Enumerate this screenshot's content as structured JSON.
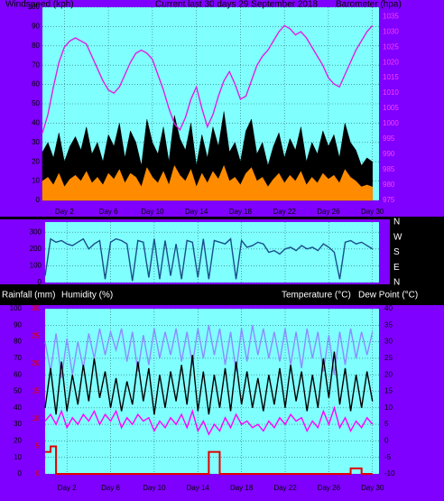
{
  "chart_data": [
    {
      "type": "line",
      "title": "Current last 30 days 29 September 2018",
      "ylabel": "Windspeed (kph)",
      "y2label": "Barometer (hpa)",
      "x": [
        0,
        0.5,
        1,
        1.5,
        2,
        2.5,
        3,
        3.5,
        4,
        4.5,
        5,
        5.5,
        6,
        6.5,
        7,
        7.5,
        8,
        8.5,
        9,
        9.5,
        10,
        10.5,
        11,
        11.5,
        12,
        12.5,
        13,
        13.5,
        14,
        14.5,
        15,
        15.5,
        16,
        16.5,
        17,
        17.5,
        18,
        18.5,
        19,
        19.5,
        20,
        20.5,
        21,
        21.5,
        22,
        22.5,
        23,
        23.5,
        24,
        24.5,
        25,
        25.5,
        26,
        26.5,
        27,
        27.5,
        28,
        28.5,
        29,
        29.5,
        30
      ],
      "xlim": [
        0,
        30.6
      ],
      "xticks": [
        {
          "value": 2,
          "label": "Day 2"
        },
        {
          "value": 6,
          "label": "Day 6"
        },
        {
          "value": 10,
          "label": "Day 10"
        },
        {
          "value": 14,
          "label": "Day 14"
        },
        {
          "value": 18,
          "label": "Day 18"
        },
        {
          "value": 22,
          "label": "Day 22"
        },
        {
          "value": 26,
          "label": "Day 26"
        },
        {
          "value": 30,
          "label": "Day 30"
        }
      ],
      "ylim": [
        0,
        100
      ],
      "yticks": [
        0,
        10,
        20,
        30,
        40,
        50,
        60,
        70,
        80,
        90,
        100
      ],
      "y2lim": [
        975,
        1038
      ],
      "y2ticks": [
        975,
        980,
        985,
        990,
        995,
        1000,
        1005,
        1010,
        1015,
        1020,
        1025,
        1030,
        1035
      ],
      "grid": true,
      "series": [
        {
          "color": "#000000",
          "style": "area",
          "axis": "y",
          "values": [
            25,
            30,
            22,
            35,
            20,
            28,
            33,
            26,
            38,
            24,
            30,
            20,
            34,
            28,
            40,
            22,
            36,
            30,
            18,
            42,
            30,
            24,
            38,
            20,
            44,
            32,
            26,
            40,
            18,
            34,
            22,
            38,
            28,
            46,
            25,
            30,
            20,
            36,
            42,
            24,
            30,
            18,
            28,
            35,
            22,
            32,
            26,
            38,
            20,
            30,
            24,
            36,
            28,
            34,
            22,
            40,
            30,
            26,
            18,
            22,
            20
          ]
        },
        {
          "color": "#ff8c00",
          "style": "area",
          "axis": "y",
          "values": [
            10,
            12,
            8,
            14,
            7,
            11,
            13,
            10,
            15,
            9,
            12,
            8,
            14,
            11,
            16,
            9,
            14,
            12,
            7,
            17,
            12,
            9,
            15,
            8,
            18,
            13,
            10,
            16,
            7,
            14,
            9,
            15,
            11,
            18,
            10,
            12,
            8,
            14,
            17,
            10,
            12,
            7,
            11,
            14,
            9,
            13,
            10,
            15,
            8,
            12,
            9,
            14,
            11,
            13,
            9,
            16,
            12,
            10,
            7,
            8,
            7
          ]
        },
        {
          "color": "#e020e0",
          "style": "line",
          "axis": "y2",
          "values": [
            997,
            1003,
            1012,
            1020,
            1025,
            1027,
            1028,
            1027,
            1026,
            1022,
            1018,
            1014,
            1011,
            1010,
            1012,
            1016,
            1020,
            1023,
            1024,
            1023,
            1021,
            1016,
            1011,
            1005,
            1000,
            998,
            1002,
            1008,
            1012,
            1005,
            999,
            1003,
            1009,
            1014,
            1017,
            1013,
            1008,
            1009,
            1014,
            1019,
            1022,
            1024,
            1027,
            1030,
            1032,
            1031,
            1029,
            1030,
            1028,
            1025,
            1022,
            1019,
            1015,
            1013,
            1012,
            1016,
            1020,
            1024,
            1027,
            1030,
            1032
          ]
        }
      ]
    },
    {
      "type": "line",
      "x": [
        0,
        0.5,
        1,
        1.5,
        2,
        2.5,
        3,
        3.5,
        4,
        4.5,
        5,
        5.5,
        6,
        6.5,
        7,
        7.5,
        8,
        8.5,
        9,
        9.5,
        10,
        10.5,
        11,
        11.5,
        12,
        12.5,
        13,
        13.5,
        14,
        14.5,
        15,
        15.5,
        16,
        16.5,
        17,
        17.5,
        18,
        18.5,
        19,
        19.5,
        20,
        20.5,
        21,
        21.5,
        22,
        22.5,
        23,
        23.5,
        24,
        24.5,
        25,
        25.5,
        26,
        26.5,
        27,
        27.5,
        28,
        28.5,
        29,
        29.5,
        30
      ],
      "xlim": [
        0,
        30.6
      ],
      "xticks": [
        2,
        6,
        10,
        14,
        18,
        22,
        26,
        30
      ],
      "ylim": [
        0,
        360
      ],
      "yticks": [
        0,
        100,
        200,
        300
      ],
      "y2lim": [
        0,
        360
      ],
      "y2ticks": [
        {
          "value": 360,
          "label": "N"
        },
        {
          "value": 270,
          "label": "W"
        },
        {
          "value": 180,
          "label": "S"
        },
        {
          "value": 90,
          "label": "E"
        },
        {
          "value": 0,
          "label": "N"
        }
      ],
      "grid": true,
      "series": [
        {
          "color": "#1a4f8a",
          "style": "line",
          "axis": "y",
          "values": [
            40,
            260,
            240,
            250,
            230,
            220,
            240,
            260,
            200,
            230,
            250,
            20,
            240,
            260,
            250,
            230,
            10,
            250,
            240,
            30,
            260,
            20,
            250,
            40,
            230,
            20,
            250,
            240,
            30,
            260,
            20,
            250,
            240,
            230,
            260,
            20,
            250,
            210,
            220,
            240,
            230,
            180,
            190,
            170,
            200,
            210,
            190,
            220,
            200,
            210,
            190,
            230,
            210,
            180,
            20,
            240,
            250,
            230,
            240,
            220,
            200
          ]
        }
      ]
    },
    {
      "type": "line",
      "ylabel": "Humidity (%)",
      "y3label": "Rainfall (mm)",
      "y2label": "Temperature (°C)",
      "y2label2": "Dew Point (°C)",
      "x": [
        0,
        0.5,
        1,
        1.5,
        2,
        2.5,
        3,
        3.5,
        4,
        4.5,
        5,
        5.5,
        6,
        6.5,
        7,
        7.5,
        8,
        8.5,
        9,
        9.5,
        10,
        10.5,
        11,
        11.5,
        12,
        12.5,
        13,
        13.5,
        14,
        14.5,
        15,
        15.5,
        16,
        16.5,
        17,
        17.5,
        18,
        18.5,
        19,
        19.5,
        20,
        20.5,
        21,
        21.5,
        22,
        22.5,
        23,
        23.5,
        24,
        24.5,
        25,
        25.5,
        26,
        26.5,
        27,
        27.5,
        28,
        28.5,
        29,
        29.5,
        30
      ],
      "xlim": [
        0,
        30.6
      ],
      "xticks": [
        {
          "value": 2,
          "label": "Day 2"
        },
        {
          "value": 6,
          "label": "Day 6"
        },
        {
          "value": 10,
          "label": "Day 10"
        },
        {
          "value": 14,
          "label": "Day 14"
        },
        {
          "value": 18,
          "label": "Day 18"
        },
        {
          "value": 22,
          "label": "Day 22"
        },
        {
          "value": 26,
          "label": "Day 26"
        },
        {
          "value": 30,
          "label": "Day 30"
        }
      ],
      "ylim": [
        0,
        100
      ],
      "yticks": [
        0,
        10,
        20,
        30,
        40,
        50,
        60,
        70,
        80,
        90,
        100
      ],
      "y3lim": [
        0,
        30
      ],
      "y3ticks": [
        0,
        5,
        10,
        15,
        20,
        25,
        30
      ],
      "y2lim": [
        -10,
        40
      ],
      "y2ticks": [
        -10,
        -5,
        0,
        5,
        10,
        15,
        20,
        25,
        30,
        35,
        40
      ],
      "grid": true,
      "series": [
        {
          "color": "#8c8cff",
          "style": "line",
          "axis": "y",
          "values": [
            80,
            62,
            85,
            58,
            82,
            60,
            80,
            64,
            85,
            70,
            88,
            72,
            86,
            75,
            88,
            68,
            86,
            62,
            84,
            66,
            88,
            70,
            86,
            72,
            88,
            68,
            86,
            66,
            88,
            70,
            90,
            72,
            88,
            66,
            86,
            62,
            88,
            68,
            90,
            72,
            88,
            70,
            86,
            68,
            88,
            66,
            86,
            64,
            88,
            70,
            86,
            62,
            84,
            60,
            86,
            66,
            88,
            70,
            86,
            72,
            86
          ]
        },
        {
          "color": "#000000",
          "style": "line",
          "axis": "y2",
          "values": [
            10,
            22,
            8,
            24,
            9,
            20,
            11,
            23,
            12,
            25,
            13,
            21,
            10,
            19,
            9,
            18,
            11,
            24,
            12,
            22,
            8,
            20,
            10,
            21,
            12,
            23,
            11,
            26,
            9,
            21,
            8,
            20,
            10,
            22,
            9,
            24,
            11,
            21,
            10,
            19,
            9,
            20,
            11,
            22,
            10,
            23,
            12,
            21,
            9,
            20,
            10,
            25,
            13,
            27,
            11,
            22,
            9,
            20,
            10,
            21,
            12
          ]
        },
        {
          "color": "#ff00ff",
          "style": "line",
          "axis": "y2",
          "values": [
            6,
            8,
            5,
            9,
            4,
            7,
            5,
            8,
            6,
            9,
            5,
            8,
            6,
            9,
            4,
            7,
            5,
            8,
            6,
            7,
            3,
            6,
            4,
            7,
            5,
            8,
            4,
            9,
            3,
            6,
            2,
            5,
            3,
            7,
            4,
            8,
            5,
            6,
            4,
            5,
            3,
            6,
            4,
            7,
            5,
            8,
            6,
            7,
            3,
            6,
            4,
            9,
            5,
            10,
            4,
            7,
            3,
            6,
            4,
            7,
            5
          ]
        },
        {
          "color": "#e00000",
          "style": "step",
          "axis": "y3",
          "values": [
            4,
            5,
            0,
            0,
            0,
            0,
            0,
            0,
            0,
            0,
            0,
            0,
            0,
            0,
            0,
            0,
            0,
            0,
            0,
            0,
            0,
            0,
            0,
            0,
            0,
            0,
            0,
            0,
            0,
            0,
            4,
            4,
            0,
            0,
            0,
            0,
            0,
            0,
            0,
            0,
            0,
            0,
            0,
            0,
            0,
            0,
            0,
            0,
            0,
            0,
            0,
            0,
            0,
            0,
            0,
            0,
            1,
            1,
            0,
            0,
            0
          ]
        }
      ]
    }
  ]
}
